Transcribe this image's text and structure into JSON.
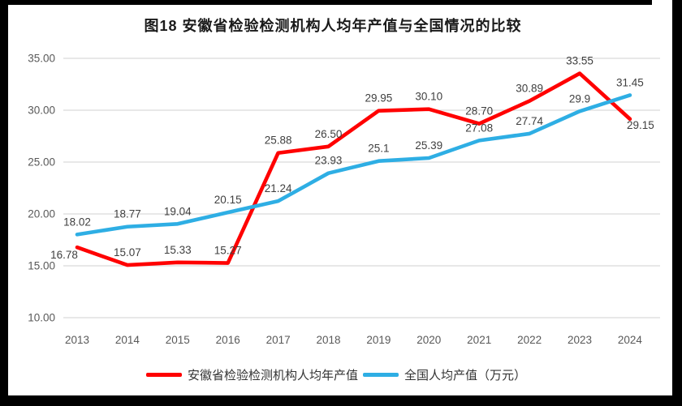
{
  "frame": {
    "outer_background": "#000000",
    "panel_background": "#ffffff"
  },
  "chart_data": {
    "type": "line",
    "title": "图18 安徽省检验检测机构人均年产值与全国情况的比较",
    "categories": [
      "2013",
      "2014",
      "2015",
      "2016",
      "2017",
      "2018",
      "2019",
      "2020",
      "2021",
      "2022",
      "2023",
      "2024"
    ],
    "series": [
      {
        "name": "安徽省检验检测机构人均年产值",
        "color": "#ff0000",
        "values": [
          16.78,
          15.07,
          15.33,
          15.27,
          25.88,
          26.5,
          29.95,
          30.1,
          28.7,
          30.89,
          33.55,
          29.15
        ],
        "labels": [
          "16.78",
          "15.07",
          "15.33",
          "15.27",
          "25.88",
          "26.50",
          "29.95",
          "30.10",
          "28.70",
          "30.89",
          "33.55",
          "29.15"
        ]
      },
      {
        "name": "全国人均产值（万元）",
        "color": "#2eaee4",
        "values": [
          18.02,
          18.77,
          19.04,
          20.15,
          21.24,
          23.93,
          25.1,
          25.39,
          27.08,
          27.74,
          29.9,
          31.45
        ],
        "labels": [
          "18.02",
          "18.77",
          "19.04",
          "20.15",
          "21.24",
          "23.93",
          "25.1",
          "25.39",
          "27.08",
          "27.74",
          "29.9",
          "31.45"
        ]
      }
    ],
    "xlabel": "",
    "ylabel": "",
    "ylim": [
      10,
      35
    ],
    "ytick_step": 5,
    "yticks": [
      "35.00",
      "30.00",
      "25.00",
      "20.00",
      "15.00",
      "10.00"
    ],
    "grid": true,
    "grid_color": "#d9d9d9",
    "tick_color": "#595959",
    "data_label_color": "#3f3f3f",
    "legend_position": "bottom"
  }
}
